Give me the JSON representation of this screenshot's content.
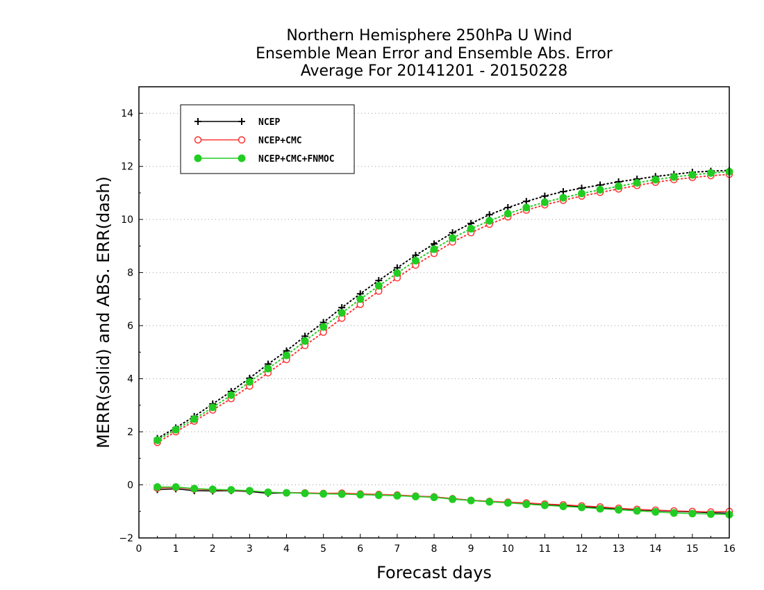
{
  "chart_data": {
    "type": "line",
    "title": [
      "Northern Hemisphere 250hPa U Wind",
      "Ensemble Mean Error and Ensemble Abs. Error",
      "Average For 20141201 - 20150228"
    ],
    "xlabel": "Forecast days",
    "ylabel": "MERR(solid) and ABS. ERR(dash)",
    "xlim": [
      0,
      16
    ],
    "ylim": [
      -2,
      15
    ],
    "xticks": [
      "0",
      "1",
      "2",
      "3",
      "4",
      "5",
      "6",
      "7",
      "8",
      "9",
      "10",
      "11",
      "12",
      "13",
      "14",
      "15",
      "16"
    ],
    "yticks": [
      "−2",
      "0",
      "2",
      "4",
      "6",
      "8",
      "10",
      "12",
      "14"
    ],
    "ytick_values": [
      -2,
      0,
      2,
      4,
      6,
      8,
      10,
      12,
      14
    ],
    "grid": "horizontal dotted",
    "legend_position": "top-left",
    "x": [
      0.5,
      1,
      1.5,
      2,
      2.5,
      3,
      3.5,
      4,
      4.5,
      5,
      5.5,
      6,
      6.5,
      7,
      7.5,
      8,
      8.5,
      9,
      9.5,
      10,
      10.5,
      11,
      11.5,
      12,
      12.5,
      13,
      13.5,
      14,
      14.5,
      15,
      15.5,
      16
    ],
    "series": [
      {
        "name": "NCEP",
        "color": "#000000",
        "marker": "plus",
        "merr": [
          -0.18,
          -0.15,
          -0.22,
          -0.23,
          -0.22,
          -0.25,
          -0.32,
          -0.3,
          -0.3,
          -0.33,
          -0.34,
          -0.36,
          -0.38,
          -0.4,
          -0.43,
          -0.45,
          -0.52,
          -0.58,
          -0.62,
          -0.67,
          -0.71,
          -0.75,
          -0.78,
          -0.82,
          -0.86,
          -0.9,
          -0.94,
          -0.97,
          -1.0,
          -1.02,
          -1.05,
          -1.07
        ],
        "abs_err": [
          1.75,
          2.15,
          2.58,
          3.05,
          3.52,
          4.02,
          4.55,
          5.05,
          5.6,
          6.12,
          6.68,
          7.2,
          7.7,
          8.18,
          8.65,
          9.08,
          9.5,
          9.85,
          10.18,
          10.45,
          10.68,
          10.88,
          11.05,
          11.18,
          11.3,
          11.42,
          11.52,
          11.62,
          11.7,
          11.78,
          11.82,
          11.85
        ]
      },
      {
        "name": "NCEP+CMC",
        "color": "#ff3333",
        "marker": "open-circle",
        "merr": [
          -0.12,
          -0.1,
          -0.16,
          -0.19,
          -0.2,
          -0.23,
          -0.28,
          -0.3,
          -0.3,
          -0.32,
          -0.31,
          -0.34,
          -0.36,
          -0.38,
          -0.42,
          -0.45,
          -0.52,
          -0.58,
          -0.62,
          -0.65,
          -0.68,
          -0.72,
          -0.75,
          -0.79,
          -0.83,
          -0.88,
          -0.92,
          -0.95,
          -0.98,
          -1.0,
          -1.02,
          -1.0
        ],
        "abs_err": [
          1.6,
          2.0,
          2.4,
          2.82,
          3.25,
          3.72,
          4.22,
          4.72,
          5.25,
          5.75,
          6.28,
          6.8,
          7.3,
          7.8,
          8.28,
          8.72,
          9.15,
          9.5,
          9.82,
          10.1,
          10.35,
          10.55,
          10.72,
          10.88,
          11.02,
          11.15,
          11.28,
          11.4,
          11.5,
          11.58,
          11.65,
          11.7
        ]
      },
      {
        "name": "NCEP+CMC+FNMOC",
        "color": "#22cc22",
        "marker": "filled-circle",
        "merr": [
          -0.08,
          -0.08,
          -0.14,
          -0.17,
          -0.19,
          -0.22,
          -0.28,
          -0.3,
          -0.32,
          -0.34,
          -0.35,
          -0.37,
          -0.39,
          -0.41,
          -0.44,
          -0.47,
          -0.54,
          -0.59,
          -0.64,
          -0.68,
          -0.73,
          -0.77,
          -0.81,
          -0.85,
          -0.9,
          -0.94,
          -0.98,
          -1.02,
          -1.06,
          -1.08,
          -1.1,
          -1.12
        ],
        "abs_err": [
          1.68,
          2.08,
          2.48,
          2.92,
          3.38,
          3.88,
          4.38,
          4.88,
          5.42,
          5.95,
          6.48,
          7.0,
          7.5,
          7.98,
          8.45,
          8.88,
          9.3,
          9.65,
          9.95,
          10.22,
          10.45,
          10.65,
          10.82,
          10.98,
          11.12,
          11.25,
          11.38,
          11.5,
          11.6,
          11.68,
          11.75,
          11.8
        ]
      }
    ]
  }
}
